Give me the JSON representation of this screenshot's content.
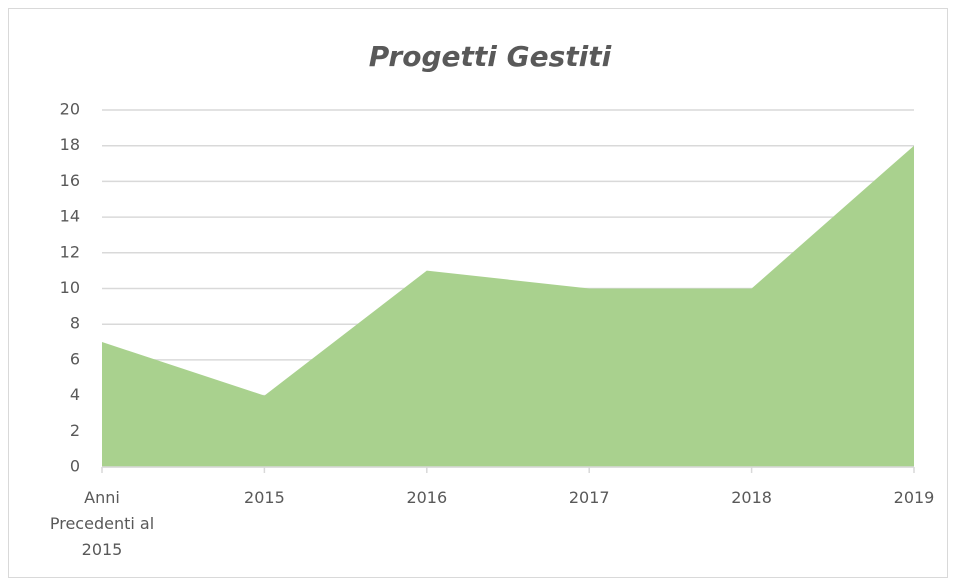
{
  "chart_data": {
    "type": "area",
    "title": "Progetti Gestiti",
    "categories": [
      "Anni Precedenti al 2015",
      "2015",
      "2016",
      "2017",
      "2018",
      "2019"
    ],
    "values": [
      7,
      4,
      11,
      10,
      10,
      18
    ],
    "color": "#a9d18e",
    "ylim": [
      0,
      20
    ],
    "yticks": [
      0,
      2,
      4,
      6,
      8,
      10,
      12,
      14,
      16,
      18,
      20
    ],
    "grid": true
  }
}
